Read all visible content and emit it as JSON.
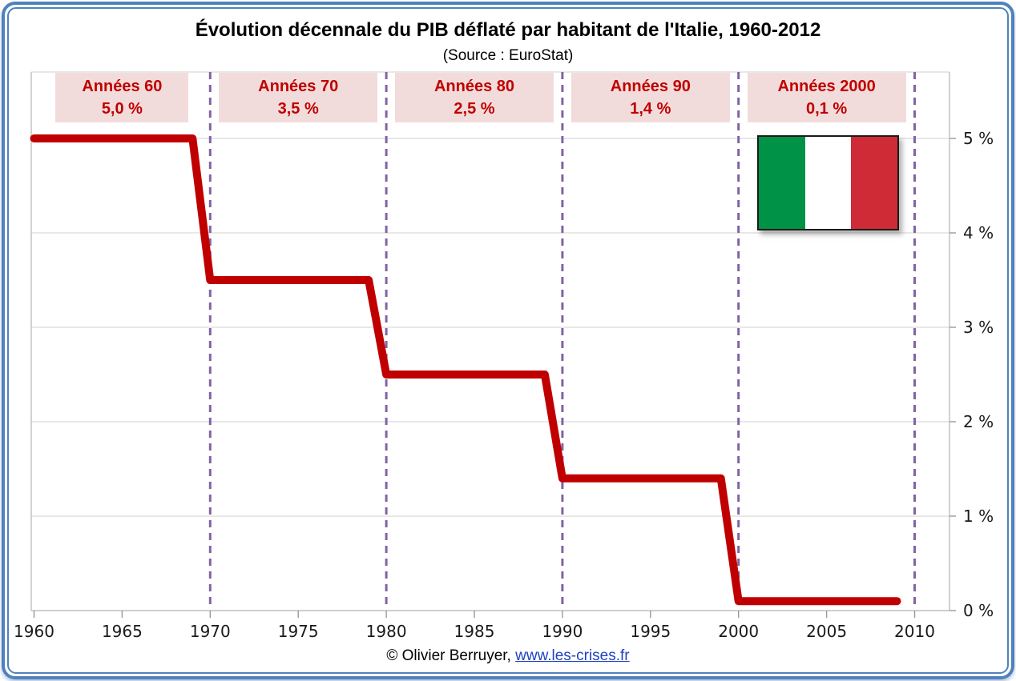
{
  "chart_data": {
    "type": "line",
    "title": "Évolution décennale du PIB déflaté par habitant de l'Italie, 1960-2012",
    "subtitle": "(Source : EuroStat)",
    "xlabel": "",
    "ylabel": "",
    "xlim": [
      1959.8,
      2012
    ],
    "ylim": [
      0,
      5.7
    ],
    "grid": "horizontal",
    "legend": "none",
    "x_ticks": [
      1960,
      1965,
      1970,
      1975,
      1980,
      1985,
      1990,
      1995,
      2000,
      2005,
      2010
    ],
    "y_ticks": [
      {
        "label": "5 %",
        "value": 5
      },
      {
        "label": "4 %",
        "value": 4
      },
      {
        "label": "3 %",
        "value": 3
      },
      {
        "label": "2 %",
        "value": 2
      },
      {
        "label": "1 %",
        "value": 1
      },
      {
        "label": "0 %",
        "value": 0
      }
    ],
    "decade_separators": [
      1970,
      1980,
      1990,
      2000,
      2010
    ],
    "decades": [
      {
        "label": "Années 60",
        "value_label": "5,0 %",
        "from": 1960,
        "to": 1969
      },
      {
        "label": "Années 70",
        "value_label": "3,5 %",
        "from": 1970,
        "to": 1979
      },
      {
        "label": "Années 80",
        "value_label": "2,5 %",
        "from": 1980,
        "to": 1989
      },
      {
        "label": "Années 90",
        "value_label": "1,4 %",
        "from": 1990,
        "to": 1999
      },
      {
        "label": "Années 2000",
        "value_label": "0,1 %",
        "from": 2000,
        "to": 2009
      }
    ],
    "series": [
      {
        "color": "#C00000",
        "steps": [
          {
            "from": 1960,
            "to": 1969,
            "value": 5.0
          },
          {
            "from": 1970,
            "to": 1979,
            "value": 3.5
          },
          {
            "from": 1980,
            "to": 1989,
            "value": 2.5
          },
          {
            "from": 1990,
            "to": 1999,
            "value": 1.4
          },
          {
            "from": 2000,
            "to": 2009,
            "value": 0.1
          }
        ]
      }
    ]
  },
  "flag": {
    "country": "Italie",
    "stripe_colors": [
      "#009246",
      "#FFFFFF",
      "#CE2B37"
    ]
  },
  "footer": {
    "text": "© Olivier Berruyer,",
    "link_text": "www.les-crises.fr"
  },
  "colors": {
    "line": "#C00000",
    "decade_label_bg": "#F2DCDB",
    "decade_label_text": "#C00000",
    "separator": "#8064A2",
    "frame_blue": "#4F81BD",
    "grid": "#D9D9D9",
    "axis": "#BFBFBF",
    "tick": "#999999",
    "link": "#1F43C0"
  }
}
